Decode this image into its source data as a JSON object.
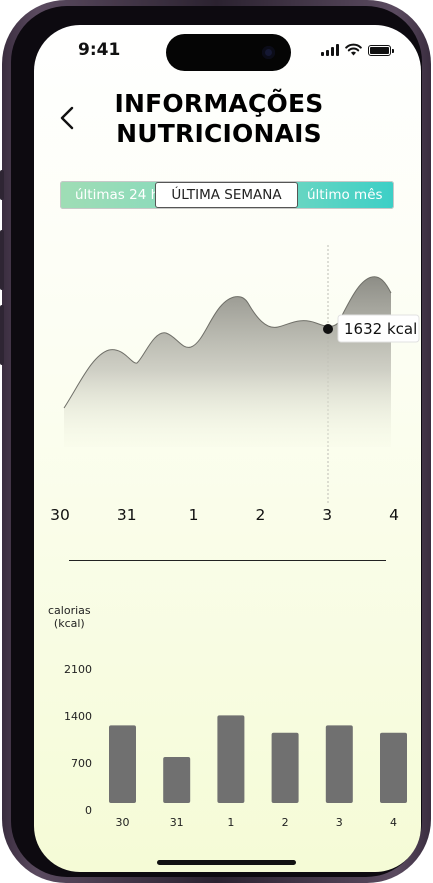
{
  "status": {
    "time": "9:41"
  },
  "header": {
    "title_line1": "INFORMAÇÕES",
    "title_line2": "NUTRICIONAIS"
  },
  "period_tabs": [
    {
      "label": "últimas 24 h",
      "selected": false
    },
    {
      "label": "ÚLTIMA SEMANA",
      "selected": true
    },
    {
      "label": "último mês",
      "selected": false
    }
  ],
  "tooltip": {
    "label": "1632 kcal"
  },
  "bar_chart": {
    "unit_line1": "calorias",
    "unit_line2": "(kcal)"
  },
  "chart_data": [
    {
      "type": "area",
      "categories": [
        "30",
        "31",
        "1",
        "2",
        "3",
        "4"
      ],
      "highlight": {
        "category": "3",
        "value": 1632
      }
    },
    {
      "type": "bar",
      "categories": [
        "30",
        "31",
        "1",
        "2",
        "3",
        "4"
      ],
      "values": [
        1230,
        760,
        1380,
        1120,
        1230,
        1120
      ],
      "ylabel": "calorias (kcal)",
      "yticks": [
        0,
        700,
        1400,
        2100
      ],
      "ylim": [
        0,
        2100
      ],
      "colors": {
        "bar": "#707070"
      }
    }
  ]
}
